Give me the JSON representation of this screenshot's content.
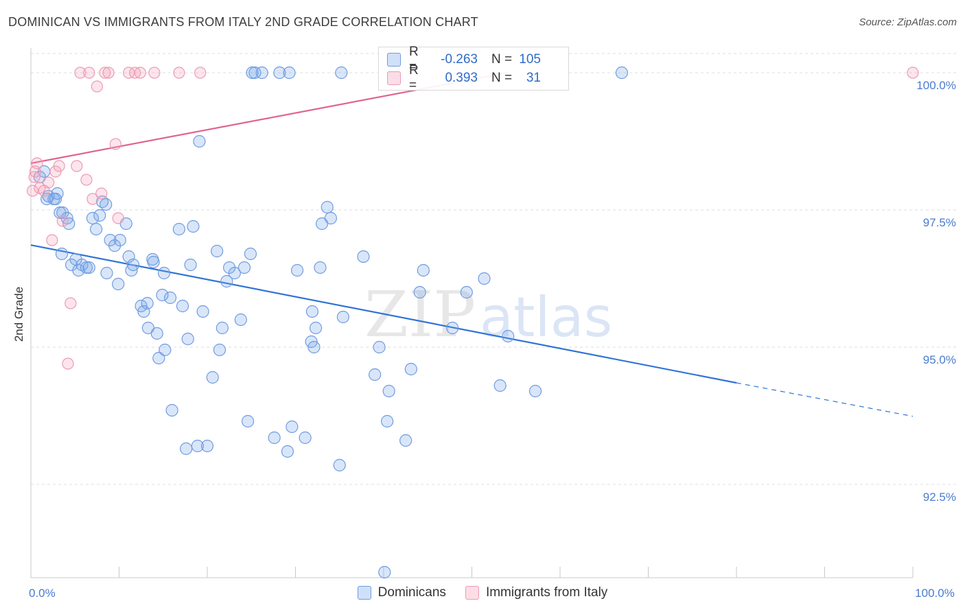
{
  "title": "DOMINICAN VS IMMIGRANTS FROM ITALY 2ND GRADE CORRELATION CHART",
  "source": "Source: ZipAtlas.com",
  "watermark": "ZIPatlas",
  "colors": {
    "blue_fill": "rgba(120,165,235,0.28)",
    "blue_stroke": "#6f9be0",
    "blue_line": "#2f73d6",
    "pink_fill": "rgba(245,160,185,0.28)",
    "pink_stroke": "#ec9ab4",
    "pink_line": "#e0648e",
    "tick_text": "#4a7bd0",
    "grid": "#dddddd"
  },
  "legend": {
    "rows": [
      {
        "r_label": "R =",
        "r_value": "-0.263",
        "n_label": "N =",
        "n_value": "105"
      },
      {
        "r_label": "R =",
        "r_value": "0.393",
        "n_label": "N =",
        "n_value": "31"
      }
    ]
  },
  "bottom_legend": [
    "Dominicans",
    "Immigrants from Italy"
  ],
  "chart_data": {
    "type": "scatter",
    "title": "DOMINICAN VS IMMIGRANTS FROM ITALY 2ND GRADE CORRELATION CHART",
    "xlabel": "",
    "ylabel": "2nd Grade",
    "xlim": [
      0,
      100
    ],
    "ylim": [
      90.8,
      100.45
    ],
    "x_tick_labels": [
      {
        "x": 0,
        "label": "0.0%"
      },
      {
        "x": 100,
        "label": "100.0%"
      }
    ],
    "y_tick_labels": [
      {
        "y": 100.0,
        "label": "100.0%"
      },
      {
        "y": 97.5,
        "label": "97.5%"
      },
      {
        "y": 95.0,
        "label": "95.0%"
      },
      {
        "y": 92.5,
        "label": "92.5%"
      }
    ],
    "grid": true,
    "legend_position": "top-center",
    "series": [
      {
        "name": "Dominicans",
        "color": "#6f9be0",
        "trend": {
          "x": [
            0,
            80
          ],
          "y": [
            96.86,
            94.35
          ],
          "dashed_to": [
            100,
            93.74
          ]
        },
        "points": [
          [
            1.0,
            98.1
          ],
          [
            1.5,
            98.2
          ],
          [
            1.8,
            97.7
          ],
          [
            2.0,
            97.75
          ],
          [
            2.6,
            97.7
          ],
          [
            2.8,
            97.7
          ],
          [
            3.0,
            97.8
          ],
          [
            3.3,
            97.45
          ],
          [
            3.6,
            97.45
          ],
          [
            4.1,
            97.35
          ],
          [
            4.3,
            97.25
          ],
          [
            3.5,
            96.7
          ],
          [
            4.6,
            96.5
          ],
          [
            5.1,
            96.6
          ],
          [
            5.4,
            96.4
          ],
          [
            5.8,
            96.5
          ],
          [
            6.3,
            96.45
          ],
          [
            6.6,
            96.45
          ],
          [
            7.0,
            97.35
          ],
          [
            7.8,
            97.4
          ],
          [
            7.4,
            97.15
          ],
          [
            8.1,
            97.65
          ],
          [
            8.5,
            97.6
          ],
          [
            8.6,
            96.35
          ],
          [
            9.0,
            96.95
          ],
          [
            9.5,
            96.85
          ],
          [
            9.9,
            96.15
          ],
          [
            10.1,
            96.95
          ],
          [
            10.8,
            97.25
          ],
          [
            11.1,
            96.65
          ],
          [
            11.4,
            96.4
          ],
          [
            11.6,
            96.5
          ],
          [
            12.5,
            95.75
          ],
          [
            12.8,
            95.65
          ],
          [
            13.3,
            95.35
          ],
          [
            13.2,
            95.8
          ],
          [
            13.8,
            96.6
          ],
          [
            13.9,
            96.55
          ],
          [
            14.3,
            95.25
          ],
          [
            14.5,
            94.8
          ],
          [
            14.9,
            95.95
          ],
          [
            15.2,
            94.95
          ],
          [
            15.1,
            96.35
          ],
          [
            15.8,
            95.9
          ],
          [
            16.0,
            93.85
          ],
          [
            16.8,
            97.15
          ],
          [
            17.2,
            95.75
          ],
          [
            17.6,
            93.15
          ],
          [
            17.8,
            95.15
          ],
          [
            18.1,
            96.5
          ],
          [
            18.4,
            97.2
          ],
          [
            18.9,
            93.2
          ],
          [
            19.1,
            98.75
          ],
          [
            19.5,
            95.65
          ],
          [
            20.0,
            93.2
          ],
          [
            20.6,
            94.45
          ],
          [
            21.1,
            96.75
          ],
          [
            21.4,
            94.95
          ],
          [
            21.7,
            95.35
          ],
          [
            22.2,
            96.2
          ],
          [
            22.5,
            96.45
          ],
          [
            23.1,
            96.35
          ],
          [
            23.8,
            95.5
          ],
          [
            24.2,
            96.45
          ],
          [
            24.6,
            93.65
          ],
          [
            25.1,
            100.0
          ],
          [
            25.4,
            100.0
          ],
          [
            26.2,
            100.0
          ],
          [
            27.6,
            93.35
          ],
          [
            28.2,
            100.0
          ],
          [
            29.1,
            93.1
          ],
          [
            29.3,
            100.0
          ],
          [
            29.6,
            93.55
          ],
          [
            30.2,
            96.4
          ],
          [
            31.1,
            93.35
          ],
          [
            31.8,
            95.1
          ],
          [
            31.9,
            95.65
          ],
          [
            32.1,
            95.0
          ],
          [
            32.3,
            95.35
          ],
          [
            32.8,
            96.45
          ],
          [
            33.0,
            97.25
          ],
          [
            33.6,
            97.55
          ],
          [
            34.0,
            97.35
          ],
          [
            35.0,
            92.85
          ],
          [
            35.4,
            95.55
          ],
          [
            35.2,
            100.0
          ],
          [
            37.7,
            96.65
          ],
          [
            39.0,
            94.5
          ],
          [
            39.5,
            95.0
          ],
          [
            40.4,
            93.65
          ],
          [
            40.6,
            94.2
          ],
          [
            41.2,
            100.0
          ],
          [
            42.5,
            93.3
          ],
          [
            43.1,
            94.6
          ],
          [
            44.1,
            96.0
          ],
          [
            44.5,
            96.4
          ],
          [
            47.8,
            95.35
          ],
          [
            49.4,
            96.0
          ],
          [
            51.4,
            96.25
          ],
          [
            53.2,
            94.3
          ],
          [
            54.1,
            95.2
          ],
          [
            57.2,
            94.2
          ],
          [
            67.0,
            100.0
          ],
          [
            40.1,
            90.9
          ],
          [
            24.9,
            96.7
          ]
        ]
      },
      {
        "name": "Immigrants from Italy",
        "color": "#ec9ab4",
        "trend": {
          "x": [
            0,
            54
          ],
          "y": [
            98.35,
            100.0
          ]
        },
        "points": [
          [
            0.2,
            97.85
          ],
          [
            0.4,
            98.1
          ],
          [
            0.5,
            98.2
          ],
          [
            0.7,
            98.35
          ],
          [
            1.0,
            97.9
          ],
          [
            1.5,
            97.85
          ],
          [
            2.0,
            98.0
          ],
          [
            2.4,
            96.95
          ],
          [
            2.8,
            98.2
          ],
          [
            3.2,
            98.3
          ],
          [
            3.6,
            97.3
          ],
          [
            4.2,
            94.7
          ],
          [
            4.5,
            95.8
          ],
          [
            5.2,
            98.3
          ],
          [
            5.6,
            100.0
          ],
          [
            6.3,
            98.05
          ],
          [
            6.6,
            100.0
          ],
          [
            7.0,
            97.7
          ],
          [
            7.5,
            99.75
          ],
          [
            8.0,
            97.8
          ],
          [
            8.4,
            100.0
          ],
          [
            8.8,
            100.0
          ],
          [
            9.6,
            98.7
          ],
          [
            9.9,
            97.35
          ],
          [
            11.1,
            100.0
          ],
          [
            11.8,
            100.0
          ],
          [
            12.4,
            100.0
          ],
          [
            14.0,
            100.0
          ],
          [
            16.8,
            100.0
          ],
          [
            19.2,
            100.0
          ],
          [
            100.0,
            100.0
          ]
        ]
      }
    ]
  }
}
